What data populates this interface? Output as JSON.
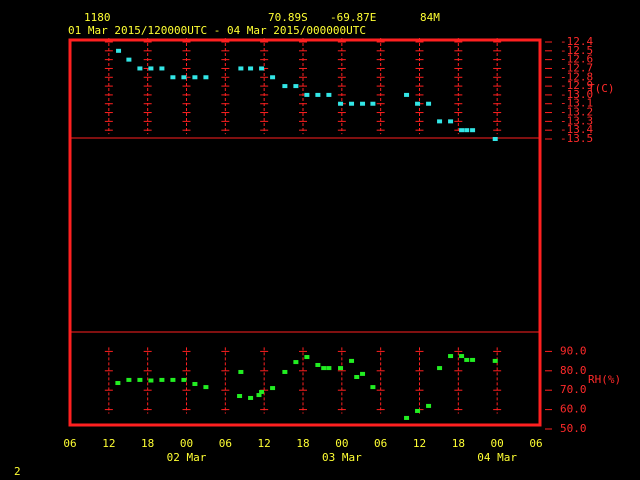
{
  "header": {
    "station": "1180",
    "lat": "70.89S",
    "lon": "-69.87E",
    "elev": "84M",
    "period": "01 Mar 2015/120000UTC - 04 Mar 2015/000000UTC"
  },
  "footer": "2",
  "chart_data": [
    {
      "type": "scatter",
      "ylabel": "T(C)",
      "color": "#33e6e6",
      "ylim": [
        -13.5,
        -12.4
      ],
      "yticks": [
        -12.4,
        -12.5,
        -12.6,
        -12.7,
        -12.8,
        -12.9,
        {
          "value": -13,
          "label": "-13.0"
        },
        -13.1,
        -13.2,
        -13.3,
        -13.4,
        -13.5
      ],
      "x": [
        13.5,
        15.1,
        16.8,
        18.5,
        20.2,
        21.9,
        23.6,
        25.3,
        27.0,
        32.4,
        33.9,
        35.6,
        37.3,
        39.2,
        40.9,
        42.6,
        44.3,
        46.0,
        47.8,
        49.5,
        51.2,
        52.8,
        58.0,
        59.7,
        61.4,
        63.1,
        64.8,
        66.5,
        67.3,
        68.2,
        71.7
      ],
      "values": [
        -12.5,
        -12.6,
        -12.7,
        -12.7,
        -12.7,
        -12.8,
        -12.8,
        -12.8,
        -12.8,
        -12.7,
        -12.7,
        -12.7,
        -12.8,
        -12.9,
        -12.9,
        -13.0,
        -13.0,
        -13.0,
        -13.1,
        -13.1,
        -13.1,
        -13.1,
        -13.0,
        -13.1,
        -13.1,
        -13.3,
        -13.3,
        -13.4,
        -13.4,
        -13.4,
        -13.5
      ]
    },
    {
      "type": "scatter",
      "ylabel": "RH(%)",
      "color": "#22ee22",
      "ylim": [
        50,
        100
      ],
      "yticks": [
        {
          "value": 90,
          "label": "90.0"
        },
        {
          "value": 80,
          "label": "80.0"
        },
        {
          "value": 70,
          "label": "70.0"
        },
        {
          "value": 60,
          "label": "60.0"
        },
        {
          "value": 50,
          "label": "50.0"
        }
      ],
      "xlim": [
        6,
        78
      ],
      "xticks": [
        {
          "value": 6,
          "label": "06"
        },
        12,
        18,
        {
          "value": 24,
          "label": "00"
        },
        {
          "value": 30,
          "label": "06"
        },
        {
          "value": 36,
          "label": "12"
        },
        {
          "value": 42,
          "label": "18"
        },
        {
          "value": 48,
          "label": "00"
        },
        {
          "value": 54,
          "label": "06"
        },
        {
          "value": 60,
          "label": "12"
        },
        {
          "value": 66,
          "label": "18"
        },
        {
          "value": 72,
          "label": "00"
        },
        {
          "value": 78,
          "label": "06"
        }
      ],
      "date_labels": [
        {
          "value": 24,
          "label": "02 Mar"
        },
        {
          "value": 48,
          "label": "03 Mar"
        },
        {
          "value": 72,
          "label": "04 Mar"
        }
      ],
      "x": [
        13.4,
        15.1,
        16.8,
        18.5,
        20.2,
        21.9,
        23.6,
        25.3,
        27.0,
        32.2,
        32.4,
        33.9,
        35.2,
        35.6,
        37.3,
        39.2,
        40.9,
        42.6,
        44.3,
        45.2,
        46.0,
        47.8,
        49.5,
        50.3,
        51.2,
        52.8,
        58.0,
        59.7,
        61.4,
        63.1,
        64.8,
        66.5,
        67.3,
        68.2,
        71.7
      ],
      "values": [
        73.7,
        75.3,
        75.3,
        75.0,
        75.3,
        75.3,
        75.3,
        73.2,
        71.6,
        67.0,
        79.4,
        66.0,
        67.5,
        69.1,
        71.1,
        79.4,
        84.5,
        87.1,
        83.0,
        81.4,
        81.4,
        81.4,
        85.1,
        76.8,
        78.4,
        71.6,
        55.7,
        59.3,
        61.9,
        81.4,
        87.6,
        87.6,
        85.6,
        85.6,
        85.1
      ]
    }
  ]
}
